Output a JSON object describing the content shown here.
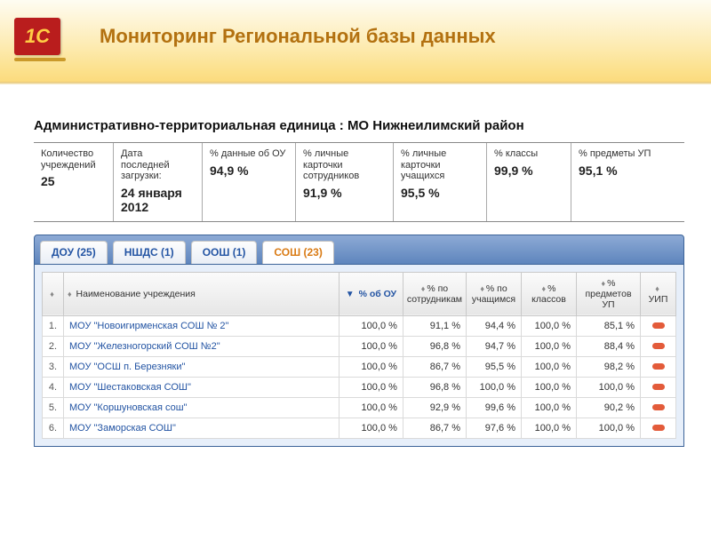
{
  "header": {
    "logo_text": "1C",
    "title": "Мониторинг Региональной базы данных"
  },
  "section_title": "Административно-территориальная единица : МО Нижнеилимский район",
  "stats": [
    {
      "label": "Количество учреждений",
      "value": "25"
    },
    {
      "label": "Дата последней загрузки:",
      "value": "24 января 2012"
    },
    {
      "label": "% данные об ОУ",
      "value": "94,9 %"
    },
    {
      "label": "% личные карточки сотрудников",
      "value": "91,9 %"
    },
    {
      "label": "% личные карточки учащихся",
      "value": "95,5 %"
    },
    {
      "label": "% классы",
      "value": "99,9 %"
    },
    {
      "label": "% предметы УП",
      "value": "95,1 %"
    }
  ],
  "tabs": [
    {
      "label": "ДОУ (25)",
      "active": false
    },
    {
      "label": "НШДС (1)",
      "active": false
    },
    {
      "label": "ООШ (1)",
      "active": false
    },
    {
      "label": "СОШ (23)",
      "active": true
    }
  ],
  "columns": {
    "idx": "",
    "name": "Наименование учреждения",
    "ou": "% об ОУ",
    "staff": "% по сотрудникам",
    "pupils": "% по учащимся",
    "classes": "% классов",
    "subjects": "% предметов УП",
    "uip": "УИП"
  },
  "rows": [
    {
      "idx": "1.",
      "name": "МОУ \"Новоигирменская СОШ № 2\"",
      "ou": "100,0 %",
      "staff": "91,1 %",
      "pupils": "94,4 %",
      "classes": "100,0 %",
      "subjects": "85,1 %"
    },
    {
      "idx": "2.",
      "name": "МОУ \"Железногорский СОШ №2\"",
      "ou": "100,0 %",
      "staff": "96,8 %",
      "pupils": "94,7 %",
      "classes": "100,0 %",
      "subjects": "88,4 %"
    },
    {
      "idx": "3.",
      "name": "МОУ \"ОСШ п. Березняки\"",
      "ou": "100,0 %",
      "staff": "86,7 %",
      "pupils": "95,5 %",
      "classes": "100,0 %",
      "subjects": "98,2 %"
    },
    {
      "idx": "4.",
      "name": "МОУ \"Шестаковская СОШ\"",
      "ou": "100,0 %",
      "staff": "96,8 %",
      "pupils": "100,0 %",
      "classes": "100,0 %",
      "subjects": "100,0 %"
    },
    {
      "idx": "5.",
      "name": "МОУ \"Коршуновская сош\"",
      "ou": "100,0 %",
      "staff": "92,9 %",
      "pupils": "99,6 %",
      "classes": "100,0 %",
      "subjects": "90,2 %"
    },
    {
      "idx": "6.",
      "name": "МОУ \"Заморская СОШ\"",
      "ou": "100,0 %",
      "staff": "86,7 %",
      "pupils": "97,6 %",
      "classes": "100,0 %",
      "subjects": "100,0 %"
    }
  ]
}
